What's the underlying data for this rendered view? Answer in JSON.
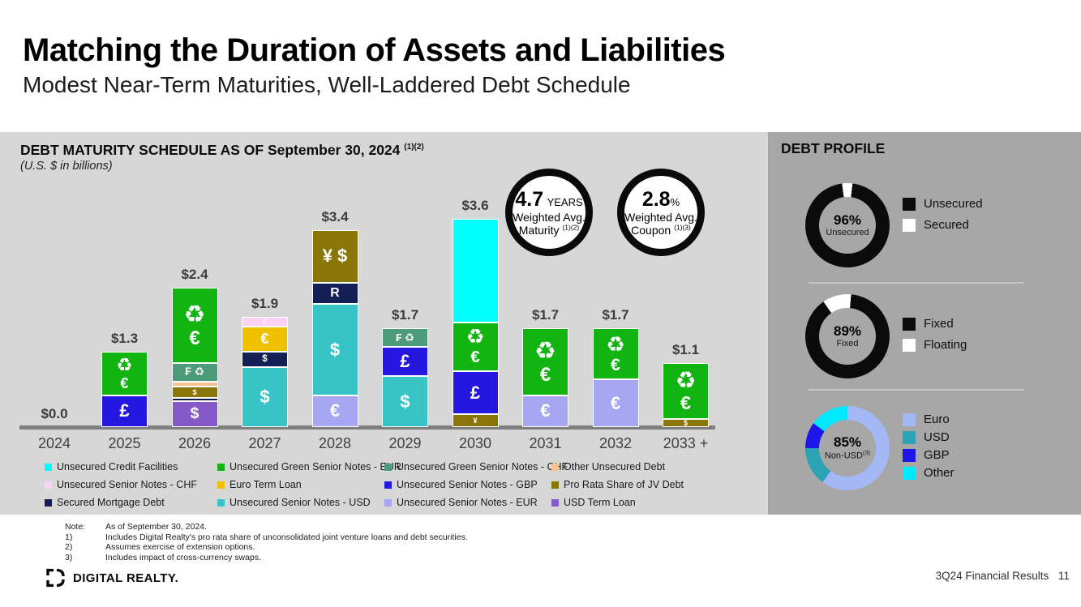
{
  "page": {
    "title": "Matching the Duration of Assets and Liabilities",
    "subtitle": "Modest Near-Term Maturities, Well-Laddered Debt Schedule"
  },
  "maturity_panel": {
    "heading": "DEBT MATURITY SCHEDULE AS OF September 30, 2024",
    "heading_sup": "(1)(2)",
    "units_note": "(U.S. $ in billions)",
    "badges": [
      {
        "value": "4.7",
        "suffix": "YEARS",
        "line1": "Weighted Avg.",
        "line2": "Maturity",
        "sup": "(1)(2)"
      },
      {
        "value": "2.8",
        "suffix": "%",
        "line1": "Weighted Avg.",
        "line2": "Coupon",
        "sup": "(1)(3)"
      }
    ]
  },
  "colors": {
    "unsecured_credit_facilities": "#00FFFF",
    "unsecured_green_senior_notes_eur": "#12B412",
    "unsecured_green_senior_notes_chf": "#4C9B79",
    "other_unsecured_debt": "#F6C392",
    "unsecured_senior_notes_chf": "#FBD2F5",
    "euro_term_loan": "#EFC100",
    "unsecured_senior_notes_gbp": "#2517E0",
    "pro_rata_share_of_jv_debt": "#8A7606",
    "secured_mortgage_debt": "#131F55",
    "unsecured_senior_notes_usd": "#38C3C7",
    "unsecured_senior_notes_eur": "#A6A6F2",
    "usd_term_loan": "#8659C9"
  },
  "legend_columns": [
    [
      {
        "key": "unsecured_credit_facilities",
        "label": "Unsecured Credit Facilities"
      },
      {
        "key": "unsecured_senior_notes_chf",
        "label": "Unsecured Senior Notes - CHF"
      },
      {
        "key": "secured_mortgage_debt",
        "label": "Secured Mortgage Debt"
      }
    ],
    [
      {
        "key": "unsecured_green_senior_notes_eur",
        "label": "Unsecured Green Senior Notes - EUR"
      },
      {
        "key": "euro_term_loan",
        "label": "Euro Term Loan"
      },
      {
        "key": "unsecured_senior_notes_usd",
        "label": "Unsecured Senior Notes - USD"
      }
    ],
    [
      {
        "key": "unsecured_green_senior_notes_chf",
        "label": "Unsecured Green Senior Notes - CHF"
      },
      {
        "key": "unsecured_senior_notes_gbp",
        "label": "Unsecured Senior Notes - GBP"
      },
      {
        "key": "unsecured_senior_notes_eur",
        "label": "Unsecured Senior Notes - EUR"
      }
    ],
    [
      {
        "key": "other_unsecured_debt",
        "label": "Other Unsecured Debt"
      },
      {
        "key": "pro_rata_share_of_jv_debt",
        "label": "Pro Rata Share of JV Debt"
      },
      {
        "key": "usd_term_loan",
        "label": "USD Term Loan"
      }
    ]
  ],
  "chart_data": [
    {
      "type": "bar",
      "stacked": true,
      "title": "DEBT MATURITY SCHEDULE AS OF September 30, 2024 (1)(2)",
      "unit": "U.S. $ in billions",
      "grid": false,
      "legend_position": "bottom",
      "categories": [
        "2024",
        "2025",
        "2026",
        "2027",
        "2028",
        "2029",
        "2030",
        "2031",
        "2032",
        "2033 +"
      ],
      "totals": [
        0.0,
        1.3,
        2.4,
        1.9,
        3.4,
        1.7,
        3.6,
        1.7,
        1.7,
        1.1
      ],
      "total_labels": [
        "$0.0",
        "$1.3",
        "$2.4",
        "$1.9",
        "$3.4",
        "$1.7",
        "$3.6",
        "$1.7",
        "$1.7",
        "$1.1"
      ],
      "bars": [
        {
          "category": "2024",
          "segments": []
        },
        {
          "category": "2025",
          "segments": [
            {
              "series": "Unsecured Senior Notes - GBP",
              "key": "unsecured_senior_notes_gbp",
              "value": 0.55,
              "sym": [
                "£"
              ]
            },
            {
              "series": "Unsecured Green Senior Notes - EUR",
              "key": "unsecured_green_senior_notes_eur",
              "value": 0.75,
              "sym": [
                "♻",
                "€"
              ]
            }
          ]
        },
        {
          "category": "2026",
          "segments": [
            {
              "series": "USD Term Loan",
              "key": "usd_term_loan",
              "value": 0.45,
              "sym": [
                "$"
              ]
            },
            {
              "series": "Secured Mortgage Debt",
              "key": "secured_mortgage_debt",
              "value": 0.05,
              "sym": []
            },
            {
              "series": "Pro Rata Share of JV Debt",
              "key": "pro_rata_share_of_jv_debt",
              "value": 0.2,
              "sym": [
                "$"
              ]
            },
            {
              "series": "Other Unsecured Debt",
              "key": "other_unsecured_debt",
              "value": 0.09,
              "sym": []
            },
            {
              "series": "Unsecured Green Senior Notes - CHF",
              "key": "unsecured_green_senior_notes_chf",
              "value": 0.32,
              "sym": [
                "₣ ♻"
              ]
            },
            {
              "series": "Unsecured Green Senior Notes - EUR",
              "key": "unsecured_green_senior_notes_eur",
              "value": 1.29,
              "sym": [
                "♻",
                "€"
              ]
            }
          ]
        },
        {
          "category": "2027",
          "segments": [
            {
              "series": "Unsecured Senior Notes - USD",
              "key": "unsecured_senior_notes_usd",
              "value": 1.03,
              "sym": [
                "$"
              ]
            },
            {
              "series": "Secured Mortgage Debt",
              "key": "secured_mortgage_debt",
              "value": 0.27,
              "sym": [
                "$"
              ]
            },
            {
              "series": "Euro Term Loan",
              "key": "euro_term_loan",
              "value": 0.43,
              "sym": [
                "€"
              ]
            },
            {
              "series": "Unsecured Senior Notes - CHF",
              "key": "unsecured_senior_notes_chf",
              "value": 0.17,
              "sym": [
                "₣"
              ]
            }
          ]
        },
        {
          "category": "2028",
          "segments": [
            {
              "series": "Unsecured Senior Notes - EUR",
              "key": "unsecured_senior_notes_eur",
              "value": 0.55,
              "sym": [
                "€"
              ]
            },
            {
              "series": "Unsecured Senior Notes - USD",
              "key": "unsecured_senior_notes_usd",
              "value": 1.57,
              "sym": [
                "$"
              ]
            },
            {
              "series": "Secured Mortgage Debt",
              "key": "secured_mortgage_debt",
              "value": 0.37,
              "sym": [
                "R"
              ]
            },
            {
              "series": "Pro Rata Share of JV Debt",
              "key": "pro_rata_share_of_jv_debt",
              "value": 0.91,
              "sym": [
                "¥ $"
              ]
            }
          ]
        },
        {
          "category": "2029",
          "segments": [
            {
              "series": "Unsecured Senior Notes - USD",
              "key": "unsecured_senior_notes_usd",
              "value": 0.88,
              "sym": [
                "$"
              ]
            },
            {
              "series": "Unsecured Senior Notes - GBP",
              "key": "unsecured_senior_notes_gbp",
              "value": 0.51,
              "sym": [
                "£"
              ]
            },
            {
              "series": "Unsecured Green Senior Notes - CHF",
              "key": "unsecured_green_senior_notes_chf",
              "value": 0.31,
              "sym": [
                "₣ ♻"
              ]
            }
          ]
        },
        {
          "category": "2030",
          "segments": [
            {
              "series": "Pro Rata Share of JV Debt",
              "key": "pro_rata_share_of_jv_debt",
              "value": 0.22,
              "sym": [
                "¥"
              ]
            },
            {
              "series": "Unsecured Senior Notes - GBP",
              "key": "unsecured_senior_notes_gbp",
              "value": 0.74,
              "sym": [
                "£"
              ]
            },
            {
              "series": "Unsecured Green Senior Notes - EUR",
              "key": "unsecured_green_senior_notes_eur",
              "value": 0.85,
              "sym": [
                "♻",
                "€"
              ]
            },
            {
              "series": "Unsecured Credit Facilities",
              "key": "unsecured_credit_facilities",
              "value": 1.79,
              "sym": []
            }
          ]
        },
        {
          "category": "2031",
          "segments": [
            {
              "series": "Unsecured Senior Notes - EUR",
              "key": "unsecured_senior_notes_eur",
              "value": 0.55,
              "sym": [
                "€"
              ]
            },
            {
              "series": "Unsecured Green Senior Notes - EUR",
              "key": "unsecured_green_senior_notes_eur",
              "value": 1.15,
              "sym": [
                "♻",
                "€"
              ]
            }
          ]
        },
        {
          "category": "2032",
          "segments": [
            {
              "series": "Unsecured Senior Notes - EUR",
              "key": "unsecured_senior_notes_eur",
              "value": 0.82,
              "sym": [
                "€"
              ]
            },
            {
              "series": "Unsecured Green Senior Notes - EUR",
              "key": "unsecured_green_senior_notes_eur",
              "value": 0.88,
              "sym": [
                "♻",
                "€"
              ]
            }
          ]
        },
        {
          "category": "2033 +",
          "segments": [
            {
              "series": "Pro Rata Share of JV Debt",
              "key": "pro_rata_share_of_jv_debt",
              "value": 0.14,
              "sym": [
                "$"
              ]
            },
            {
              "series": "Unsecured Green Senior Notes - EUR",
              "key": "unsecured_green_senior_notes_eur",
              "value": 0.96,
              "sym": [
                "♻",
                "€"
              ]
            }
          ]
        }
      ]
    },
    {
      "type": "pie",
      "donut": true,
      "center_value": "96%",
      "center_label": "Unsecured",
      "center_sup": "",
      "start_deg": 7,
      "slices": [
        {
          "label": "Unsecured",
          "value": 96,
          "color": "#0b0b0b"
        },
        {
          "label": "Secured",
          "value": 4,
          "color": "#ffffff"
        }
      ]
    },
    {
      "type": "pie",
      "donut": true,
      "center_value": "89%",
      "center_label": "Fixed",
      "center_sup": "",
      "start_deg": 5,
      "slices": [
        {
          "label": "Fixed",
          "value": 89,
          "color": "#0b0b0b"
        },
        {
          "label": "Floating",
          "value": 11,
          "color": "#ffffff"
        }
      ]
    },
    {
      "type": "pie",
      "donut": true,
      "center_value": "85%",
      "center_label": "Non-USD",
      "center_sup": "(3)",
      "start_deg": 0,
      "slices": [
        {
          "label": "Euro",
          "value": 60,
          "color": "#A4B8F6"
        },
        {
          "label": "USD",
          "value": 15,
          "color": "#2CA3B5"
        },
        {
          "label": "GBP",
          "value": 10,
          "color": "#1E15E8"
        },
        {
          "label": "Other",
          "value": 15,
          "color": "#00E8FF"
        }
      ]
    }
  ],
  "debt_profile": {
    "heading": "DEBT PROFILE"
  },
  "notes": {
    "rows": [
      {
        "n": "Note:",
        "t": "As of September 30, 2024."
      },
      {
        "n": "1)",
        "t": "Includes Digital Realty's pro rata share of unconsolidated joint venture loans and debt securities."
      },
      {
        "n": "2)",
        "t": "Assumes exercise of extension options."
      },
      {
        "n": "3)",
        "t": "Includes impact of cross-currency swaps."
      }
    ]
  },
  "footer": {
    "brand": "DIGITAL REALTY.",
    "page_label": "3Q24 Financial Results",
    "page_number": "11"
  }
}
